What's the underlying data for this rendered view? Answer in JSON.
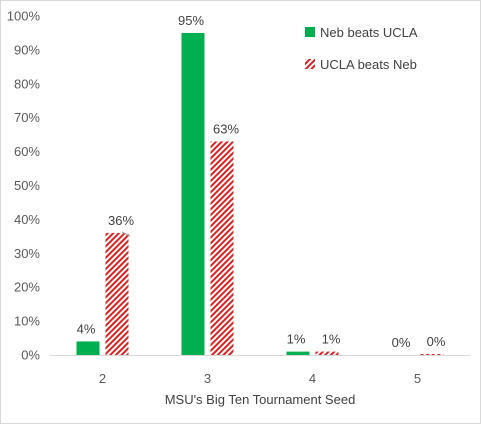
{
  "chart_data": {
    "type": "bar",
    "title": "",
    "xlabel": "MSU's Big Ten Tournament Seed",
    "ylabel": "",
    "categories": [
      "2",
      "3",
      "4",
      "5"
    ],
    "ylim": [
      0,
      100
    ],
    "ytick_step": 10,
    "ytick_format": "{v}%",
    "grid": false,
    "legend_position": "top-right",
    "series": [
      {
        "name": "Neb beats UCLA",
        "values": [
          4,
          95,
          1,
          0
        ],
        "labels": [
          "4%",
          "95%",
          "1%",
          "0%"
        ],
        "color": "#00b050",
        "pattern": "solid"
      },
      {
        "name": "UCLA beats Neb",
        "values": [
          36,
          63,
          1,
          0.3
        ],
        "labels": [
          "36%",
          "63%",
          "1%",
          "0%"
        ],
        "color": "#e02020",
        "pattern": "diagonal-hatch"
      }
    ]
  }
}
